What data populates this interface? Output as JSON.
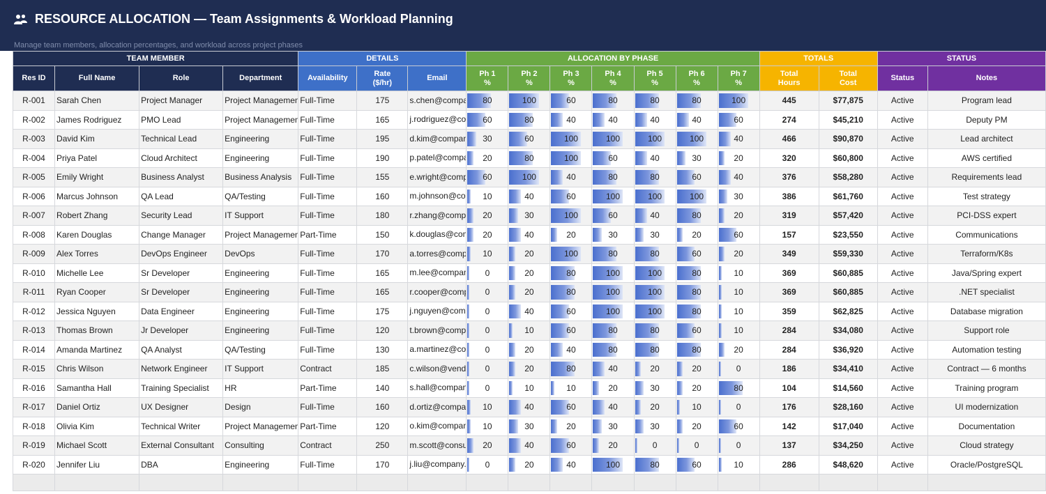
{
  "header": {
    "title": "RESOURCE ALLOCATION — Team Assignments & Workload Planning",
    "subtitle": "Manage team members, allocation percentages, and workload across project phases",
    "icon": "people-icon"
  },
  "groups": {
    "team_member": "TEAM MEMBER",
    "details": "DETAILS",
    "allocation": "ALLOCATION BY PHASE",
    "totals": "TOTALS",
    "status": "STATUS"
  },
  "columns": {
    "res_id": "Res ID",
    "full_name": "Full Name",
    "role": "Role",
    "department": "Department",
    "availability": "Availability",
    "rate": [
      "Rate",
      "($/hr)"
    ],
    "email": "Email",
    "phases": [
      [
        "Ph 1",
        "%"
      ],
      [
        "Ph 2",
        "%"
      ],
      [
        "Ph 3",
        "%"
      ],
      [
        "Ph 4",
        "%"
      ],
      [
        "Ph 5",
        "%"
      ],
      [
        "Ph 6",
        "%"
      ],
      [
        "Ph 7",
        "%"
      ]
    ],
    "total_hours": [
      "Total",
      "Hours"
    ],
    "total_cost": [
      "Total",
      "Cost"
    ],
    "status": "Status",
    "notes": "Notes"
  },
  "colors": {
    "banner": "#1f2d52",
    "team_member": "#1f2d52",
    "details": "#3e70c8",
    "allocation": "#6ba944",
    "totals": "#f6b400",
    "status": "#7030a0",
    "bar": "#4a6fce"
  },
  "rows": [
    {
      "id": "R-001",
      "name": "Sarah Chen",
      "role": "Project Manager",
      "dept": "Project Management",
      "avail": "Full-Time",
      "rate": "175",
      "email": "s.chen@company.com",
      "phases": [
        80,
        100,
        60,
        80,
        80,
        80,
        100
      ],
      "hours": "445",
      "cost": "$77,875",
      "status": "Active",
      "notes": "Program lead"
    },
    {
      "id": "R-002",
      "name": "James Rodriguez",
      "role": "PMO Lead",
      "dept": "Project Management",
      "avail": "Full-Time",
      "rate": "165",
      "email": "j.rodriguez@company.com",
      "phases": [
        60,
        80,
        40,
        40,
        40,
        40,
        60
      ],
      "hours": "274",
      "cost": "$45,210",
      "status": "Active",
      "notes": "Deputy PM"
    },
    {
      "id": "R-003",
      "name": "David Kim",
      "role": "Technical Lead",
      "dept": "Engineering",
      "avail": "Full-Time",
      "rate": "195",
      "email": "d.kim@company.com",
      "phases": [
        30,
        60,
        100,
        100,
        100,
        100,
        40
      ],
      "hours": "466",
      "cost": "$90,870",
      "status": "Active",
      "notes": "Lead architect"
    },
    {
      "id": "R-004",
      "name": "Priya Patel",
      "role": "Cloud Architect",
      "dept": "Engineering",
      "avail": "Full-Time",
      "rate": "190",
      "email": "p.patel@company.com",
      "phases": [
        20,
        80,
        100,
        60,
        40,
        30,
        20
      ],
      "hours": "320",
      "cost": "$60,800",
      "status": "Active",
      "notes": "AWS certified"
    },
    {
      "id": "R-005",
      "name": "Emily Wright",
      "role": "Business Analyst",
      "dept": "Business Analysis",
      "avail": "Full-Time",
      "rate": "155",
      "email": "e.wright@company.com",
      "phases": [
        60,
        100,
        40,
        80,
        80,
        60,
        40
      ],
      "hours": "376",
      "cost": "$58,280",
      "status": "Active",
      "notes": "Requirements lead"
    },
    {
      "id": "R-006",
      "name": "Marcus Johnson",
      "role": "QA Lead",
      "dept": "QA/Testing",
      "avail": "Full-Time",
      "rate": "160",
      "email": "m.johnson@company.com",
      "phases": [
        10,
        40,
        60,
        100,
        100,
        100,
        30
      ],
      "hours": "386",
      "cost": "$61,760",
      "status": "Active",
      "notes": "Test strategy"
    },
    {
      "id": "R-007",
      "name": "Robert Zhang",
      "role": "Security Lead",
      "dept": "IT Support",
      "avail": "Full-Time",
      "rate": "180",
      "email": "r.zhang@company.com",
      "phases": [
        20,
        30,
        100,
        60,
        40,
        80,
        20
      ],
      "hours": "319",
      "cost": "$57,420",
      "status": "Active",
      "notes": "PCI-DSS expert"
    },
    {
      "id": "R-008",
      "name": "Karen Douglas",
      "role": "Change Manager",
      "dept": "Project Management",
      "avail": "Part-Time",
      "rate": "150",
      "email": "k.douglas@company.com",
      "phases": [
        20,
        40,
        20,
        30,
        30,
        20,
        60
      ],
      "hours": "157",
      "cost": "$23,550",
      "status": "Active",
      "notes": "Communications"
    },
    {
      "id": "R-009",
      "name": "Alex Torres",
      "role": "DevOps Engineer",
      "dept": "DevOps",
      "avail": "Full-Time",
      "rate": "170",
      "email": "a.torres@company.com",
      "phases": [
        10,
        20,
        100,
        80,
        80,
        60,
        20
      ],
      "hours": "349",
      "cost": "$59,330",
      "status": "Active",
      "notes": "Terraform/K8s"
    },
    {
      "id": "R-010",
      "name": "Michelle Lee",
      "role": "Sr Developer",
      "dept": "Engineering",
      "avail": "Full-Time",
      "rate": "165",
      "email": "m.lee@company.com",
      "phases": [
        0,
        20,
        80,
        100,
        100,
        80,
        10
      ],
      "hours": "369",
      "cost": "$60,885",
      "status": "Active",
      "notes": "Java/Spring expert"
    },
    {
      "id": "R-011",
      "name": "Ryan Cooper",
      "role": "Sr Developer",
      "dept": "Engineering",
      "avail": "Full-Time",
      "rate": "165",
      "email": "r.cooper@company.com",
      "phases": [
        0,
        20,
        80,
        100,
        100,
        80,
        10
      ],
      "hours": "369",
      "cost": "$60,885",
      "status": "Active",
      "notes": ".NET specialist"
    },
    {
      "id": "R-012",
      "name": "Jessica Nguyen",
      "role": "Data Engineer",
      "dept": "Engineering",
      "avail": "Full-Time",
      "rate": "175",
      "email": "j.nguyen@company.com",
      "phases": [
        0,
        40,
        60,
        100,
        100,
        80,
        10
      ],
      "hours": "359",
      "cost": "$62,825",
      "status": "Active",
      "notes": "Database migration"
    },
    {
      "id": "R-013",
      "name": "Thomas Brown",
      "role": "Jr Developer",
      "dept": "Engineering",
      "avail": "Full-Time",
      "rate": "120",
      "email": "t.brown@company.com",
      "phases": [
        0,
        10,
        60,
        80,
        80,
        60,
        10
      ],
      "hours": "284",
      "cost": "$34,080",
      "status": "Active",
      "notes": "Support role"
    },
    {
      "id": "R-014",
      "name": "Amanda Martinez",
      "role": "QA Analyst",
      "dept": "QA/Testing",
      "avail": "Full-Time",
      "rate": "130",
      "email": "a.martinez@company.com",
      "phases": [
        0,
        20,
        40,
        80,
        80,
        80,
        20
      ],
      "hours": "284",
      "cost": "$36,920",
      "status": "Active",
      "notes": "Automation testing"
    },
    {
      "id": "R-015",
      "name": "Chris Wilson",
      "role": "Network Engineer",
      "dept": "IT Support",
      "avail": "Contract",
      "rate": "185",
      "email": "c.wilson@vendor.com",
      "phases": [
        0,
        20,
        80,
        40,
        20,
        20,
        0
      ],
      "hours": "186",
      "cost": "$34,410",
      "status": "Active",
      "notes": "Contract — 6 months"
    },
    {
      "id": "R-016",
      "name": "Samantha Hall",
      "role": "Training Specialist",
      "dept": "HR",
      "avail": "Part-Time",
      "rate": "140",
      "email": "s.hall@company.com",
      "phases": [
        0,
        10,
        10,
        20,
        30,
        20,
        80
      ],
      "hours": "104",
      "cost": "$14,560",
      "status": "Active",
      "notes": "Training program"
    },
    {
      "id": "R-017",
      "name": "Daniel Ortiz",
      "role": "UX Designer",
      "dept": "Design",
      "avail": "Full-Time",
      "rate": "160",
      "email": "d.ortiz@company.com",
      "phases": [
        10,
        40,
        60,
        40,
        20,
        10,
        0
      ],
      "hours": "176",
      "cost": "$28,160",
      "status": "Active",
      "notes": "UI modernization"
    },
    {
      "id": "R-018",
      "name": "Olivia Kim",
      "role": "Technical Writer",
      "dept": "Project Management",
      "avail": "Part-Time",
      "rate": "120",
      "email": "o.kim@company.com",
      "phases": [
        10,
        30,
        20,
        30,
        30,
        20,
        60
      ],
      "hours": "142",
      "cost": "$17,040",
      "status": "Active",
      "notes": "Documentation"
    },
    {
      "id": "R-019",
      "name": "Michael Scott",
      "role": "External Consultant",
      "dept": "Consulting",
      "avail": "Contract",
      "rate": "250",
      "email": "m.scott@consultco.com",
      "phases": [
        20,
        40,
        60,
        20,
        0,
        0,
        0
      ],
      "hours": "137",
      "cost": "$34,250",
      "status": "Active",
      "notes": "Cloud strategy"
    },
    {
      "id": "R-020",
      "name": "Jennifer Liu",
      "role": "DBA",
      "dept": "Engineering",
      "avail": "Full-Time",
      "rate": "170",
      "email": "j.liu@company.com",
      "phases": [
        0,
        20,
        40,
        100,
        80,
        60,
        10
      ],
      "hours": "286",
      "cost": "$48,620",
      "status": "Active",
      "notes": "Oracle/PostgreSQL"
    }
  ]
}
